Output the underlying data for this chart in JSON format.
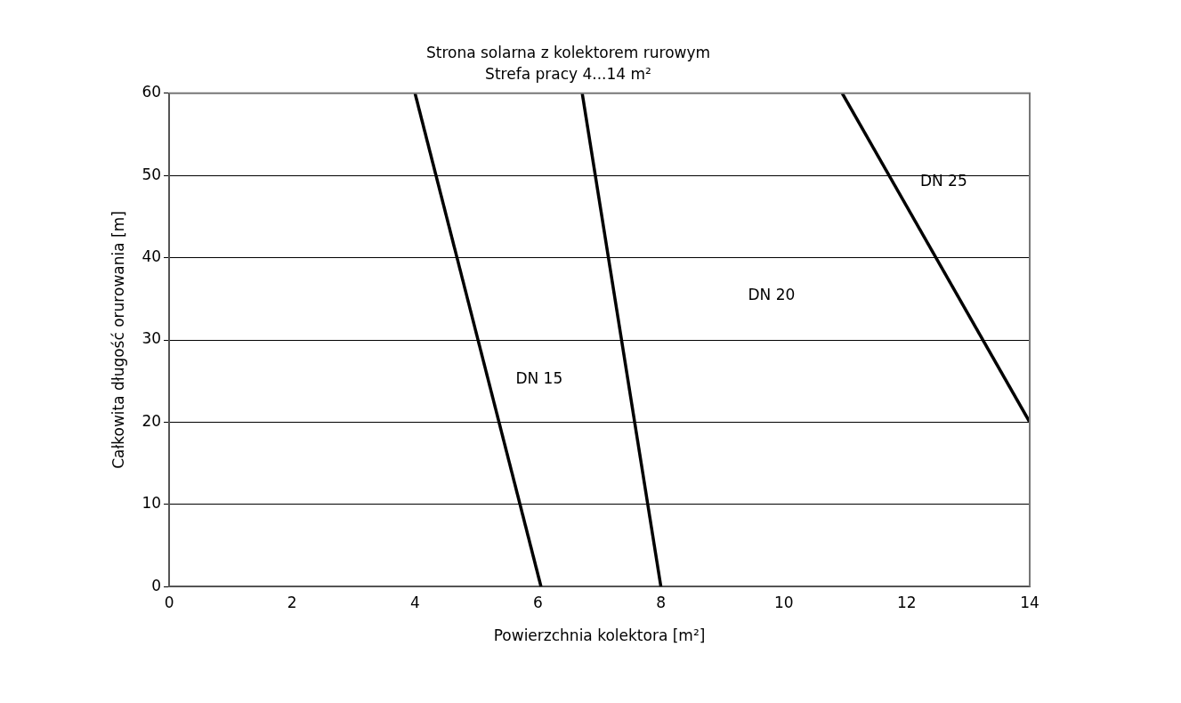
{
  "chart_data": {
    "type": "line",
    "title": "Strona solarna z kolektorem rurowym",
    "subtitle": "Strefa pracy 4...14 m²",
    "xlabel": "Powierzchnia kolektora [m²]",
    "ylabel": "Całkowita długość orurowania [m]",
    "series": [
      {
        "color": "#000000",
        "x": [
          4,
          6.05
        ],
        "values": [
          60,
          0
        ]
      },
      {
        "color": "#000000",
        "x": [
          6.72,
          8
        ],
        "values": [
          60,
          0
        ]
      },
      {
        "color": "#000000",
        "x": [
          10.95,
          14
        ],
        "values": [
          60,
          20
        ]
      }
    ],
    "xlim": [
      0,
      14
    ],
    "xticks": [
      0,
      2,
      4,
      6,
      8,
      10,
      12,
      14
    ],
    "ylim": [
      0,
      60
    ],
    "yticks": [
      0,
      10,
      20,
      30,
      40,
      50,
      60
    ],
    "grid": "y",
    "legend": false,
    "marker": "none",
    "line_style": "solid",
    "annotations": [
      "DN 15",
      "DN 20",
      "DN 25"
    ]
  }
}
